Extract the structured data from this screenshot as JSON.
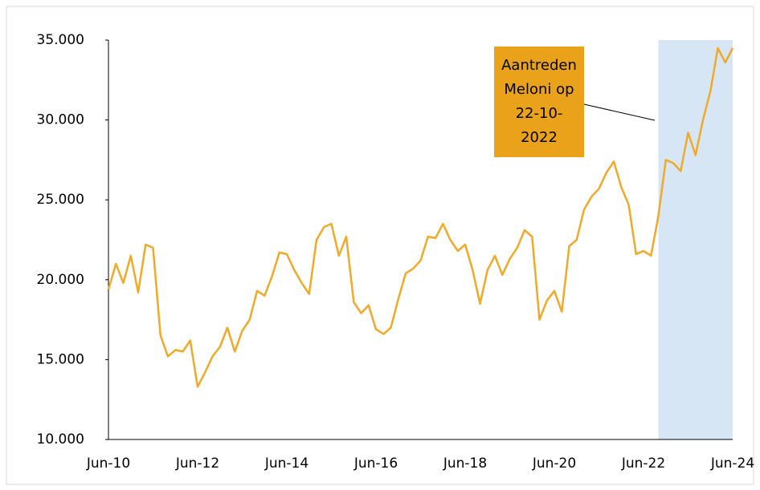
{
  "chart_data": {
    "type": "line",
    "categories": [
      "Jun-10",
      null,
      null,
      null,
      null,
      null,
      null,
      null,
      null,
      null,
      null,
      null,
      "Jun-12",
      null,
      null,
      null,
      null,
      null,
      null,
      null,
      null,
      null,
      null,
      null,
      "Jun-14",
      null,
      null,
      null,
      null,
      null,
      null,
      null,
      null,
      null,
      null,
      null,
      "Jun-16",
      null,
      null,
      null,
      null,
      null,
      null,
      null,
      null,
      null,
      null,
      null,
      "Jun-18",
      null,
      null,
      null,
      null,
      null,
      null,
      null,
      null,
      null,
      null,
      null,
      "Jun-20",
      null,
      null,
      null,
      null,
      null,
      null,
      null,
      null,
      null,
      null,
      null,
      "Jun-22",
      null,
      null,
      null,
      null,
      null,
      null,
      null,
      null,
      null,
      null,
      null,
      "Jun-24"
    ],
    "series": [
      {
        "color": "#f0a928",
        "values": [
          19400,
          21000,
          19800,
          21500,
          19200,
          22200,
          22000,
          16500,
          15200,
          15600,
          15500,
          16200,
          13300,
          14200,
          15200,
          15800,
          17000,
          15500,
          16800,
          17500,
          19300,
          19000,
          20200,
          21700,
          21600,
          20600,
          19800,
          19100,
          22500,
          23300,
          23500,
          21500,
          22700,
          18600,
          17900,
          18400,
          16900,
          16600,
          17000,
          18800,
          20400,
          20700,
          21200,
          22700,
          22600,
          23500,
          22500,
          21800,
          22200,
          20600,
          18500,
          20600,
          21500,
          20300,
          21300,
          22000,
          23100,
          22700,
          17500,
          18700,
          19300,
          18000,
          22100,
          22500,
          24400,
          25200,
          25700,
          26700,
          27400,
          25800,
          24700,
          21600,
          21800,
          21500,
          24000,
          27500,
          27300,
          26800,
          29200,
          27800,
          30000,
          31800,
          34500,
          33600,
          34500
        ]
      }
    ],
    "ylim": [
      10000,
      35000
    ],
    "yticks": [
      {
        "value": 10000,
        "label": "10.000"
      },
      {
        "value": 15000,
        "label": "15.000"
      },
      {
        "value": 20000,
        "label": "20.000"
      },
      {
        "value": 25000,
        "label": "25.000"
      },
      {
        "value": 30000,
        "label": "30.000"
      },
      {
        "value": 35000,
        "label": "35.000"
      }
    ],
    "highlight": {
      "from": 74,
      "to": 84,
      "color": "#d6e6f5"
    },
    "annotation": {
      "lines": [
        "Aantreden",
        "Meloni op",
        "22-10-",
        "2022"
      ],
      "color": "#eba21b"
    }
  }
}
